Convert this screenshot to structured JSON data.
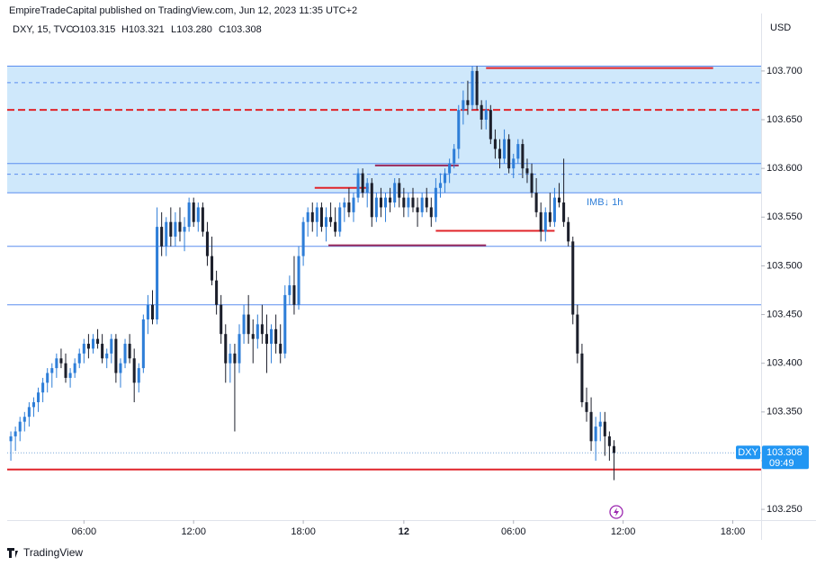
{
  "header": {
    "publisher": "EmpireTradeCapital published on TradingView.com, Jun 12, 2023 11:35 UTC+2",
    "brand": "TradingView"
  },
  "chart_data": {
    "type": "candlestick",
    "symbol": "DXY, 15, TVC",
    "ohlc_labels": [
      "O103.315",
      "H103.321",
      "L103.280",
      "C103.308"
    ],
    "currency": "USD",
    "annotation": "IMB↓ 1h",
    "last_price": {
      "symbol": "DXY",
      "label": "103.308",
      "countdown": "09:49",
      "color": "#2196f3"
    },
    "up_color": "#2e7ed8",
    "down_color": "#1c1f2b",
    "x": [
      0,
      1,
      2,
      3,
      4,
      5,
      6,
      7,
      8,
      9,
      10,
      11,
      12,
      13,
      14,
      15,
      16,
      17,
      18,
      19,
      20,
      21,
      22,
      23,
      24,
      25,
      26,
      27,
      28,
      29,
      30,
      31,
      32,
      33,
      34,
      35,
      36,
      37,
      38,
      39,
      40,
      41,
      42,
      43,
      44,
      45,
      46,
      47,
      48,
      49,
      50,
      51,
      52,
      53,
      54,
      55,
      56,
      57,
      58,
      59,
      60,
      61,
      62,
      63,
      64,
      65,
      66,
      67,
      68,
      69,
      70,
      71,
      72,
      73,
      74,
      75,
      76,
      77,
      78,
      79,
      80,
      81,
      82,
      83,
      84,
      85,
      86,
      87,
      88,
      89,
      90,
      91,
      92,
      93,
      94,
      95,
      96,
      97,
      98,
      99,
      100,
      101,
      102,
      103,
      104,
      105,
      106,
      107,
      108,
      109,
      110,
      111,
      112,
      113,
      114,
      115,
      116,
      117,
      118,
      119,
      120,
      121,
      122,
      123,
      124,
      125,
      126,
      127,
      128,
      129,
      130,
      131,
      132
    ],
    "open": [
      103.32,
      103.325,
      103.33,
      103.34,
      103.345,
      103.355,
      103.36,
      103.37,
      103.38,
      103.39,
      103.395,
      103.405,
      103.4,
      103.385,
      103.39,
      103.4,
      103.41,
      103.42,
      103.415,
      103.425,
      103.42,
      103.405,
      103.41,
      103.425,
      103.39,
      103.4,
      103.42,
      103.405,
      103.38,
      103.395,
      103.445,
      103.46,
      103.445,
      103.54,
      103.52,
      103.545,
      103.53,
      103.545,
      103.535,
      103.54,
      103.565,
      103.545,
      103.56,
      103.535,
      103.51,
      103.485,
      103.46,
      103.43,
      103.4,
      103.41,
      103.4,
      103.43,
      103.45,
      103.43,
      103.425,
      103.44,
      103.43,
      103.42,
      103.435,
      103.42,
      103.41,
      103.47,
      103.48,
      103.46,
      103.51,
      103.545,
      103.555,
      103.545,
      103.56,
      103.54,
      103.55,
      103.545,
      103.535,
      103.56,
      103.565,
      103.555,
      103.57,
      103.595,
      103.575,
      103.585,
      103.55,
      103.57,
      103.56,
      103.57,
      103.565,
      103.585,
      103.57,
      103.56,
      103.57,
      103.56,
      103.555,
      103.57,
      103.56,
      103.55,
      103.58,
      103.585,
      103.595,
      103.605,
      103.62,
      103.66,
      103.67,
      103.665,
      103.7,
      103.665,
      103.65,
      103.66,
      103.63,
      103.62,
      103.61,
      103.63,
      103.6,
      103.61,
      103.625,
      103.6,
      103.595,
      103.575,
      103.555,
      103.535,
      103.555,
      103.545,
      103.57,
      103.565,
      103.545,
      103.525,
      103.45,
      103.41,
      103.36,
      103.35,
      103.32,
      103.335,
      103.34,
      103.325,
      103.315
    ],
    "high": [
      103.33,
      103.335,
      103.345,
      103.35,
      103.36,
      103.365,
      103.375,
      103.385,
      103.395,
      103.4,
      103.41,
      103.415,
      103.41,
      103.395,
      103.405,
      103.415,
      103.425,
      103.43,
      103.43,
      103.435,
      103.43,
      103.415,
      103.43,
      103.43,
      103.405,
      103.425,
      103.43,
      103.415,
      103.4,
      103.45,
      103.47,
      103.475,
      103.56,
      103.555,
      103.55,
      103.56,
      103.555,
      103.56,
      103.55,
      103.57,
      103.57,
      103.565,
      103.565,
      103.545,
      103.53,
      103.495,
      103.47,
      103.44,
      103.42,
      103.42,
      103.44,
      103.46,
      103.47,
      103.445,
      103.45,
      103.46,
      103.45,
      103.44,
      103.45,
      103.44,
      103.48,
      103.49,
      103.51,
      103.52,
      103.55,
      103.56,
      103.565,
      103.565,
      103.565,
      103.56,
      103.565,
      103.56,
      103.565,
      103.57,
      103.58,
      103.575,
      103.6,
      103.6,
      103.59,
      103.59,
      103.575,
      103.58,
      103.575,
      103.58,
      103.59,
      103.59,
      103.58,
      103.575,
      103.58,
      103.57,
      103.575,
      103.58,
      103.57,
      103.59,
      103.595,
      103.6,
      103.61,
      103.625,
      103.665,
      103.68,
      103.69,
      103.705,
      103.705,
      103.67,
      103.67,
      103.665,
      103.64,
      103.63,
      103.64,
      103.635,
      103.615,
      103.63,
      103.63,
      103.61,
      103.605,
      103.59,
      103.565,
      103.56,
      103.575,
      103.58,
      103.585,
      103.61,
      103.55,
      103.53,
      103.46,
      103.42,
      103.375,
      103.365,
      103.345,
      103.35,
      103.35,
      103.33,
      103.321
    ],
    "low": [
      103.3,
      103.31,
      103.32,
      103.33,
      103.335,
      103.345,
      103.35,
      103.36,
      103.37,
      103.375,
      103.385,
      103.395,
      103.38,
      103.375,
      103.385,
      103.395,
      103.4,
      103.405,
      103.41,
      103.415,
      103.4,
      103.395,
      103.4,
      103.38,
      103.375,
      103.395,
      103.4,
      103.36,
      103.37,
      103.39,
      103.43,
      103.44,
      103.44,
      103.51,
      103.51,
      103.52,
      103.52,
      103.525,
      103.515,
      103.535,
      103.54,
      103.535,
      103.53,
      103.5,
      103.48,
      103.45,
      103.42,
      103.38,
      103.38,
      103.33,
      103.39,
      103.42,
      103.42,
      103.4,
      103.415,
      103.42,
      103.39,
      103.4,
      103.41,
      103.4,
      103.405,
      103.46,
      103.45,
      103.455,
      103.5,
      103.53,
      103.535,
      103.53,
      103.535,
      103.525,
      103.54,
      103.53,
      103.53,
      103.545,
      103.55,
      103.545,
      103.565,
      103.57,
      103.56,
      103.54,
      103.545,
      103.55,
      103.545,
      103.555,
      103.56,
      103.56,
      103.55,
      103.55,
      103.555,
      103.54,
      103.55,
      103.555,
      103.54,
      103.545,
      103.57,
      103.575,
      103.585,
      103.6,
      103.61,
      103.645,
      103.655,
      103.66,
      103.66,
      103.64,
      103.64,
      103.625,
      103.61,
      103.6,
      103.605,
      103.595,
      103.59,
      103.605,
      103.59,
      103.585,
      103.57,
      103.55,
      103.525,
      103.525,
      103.54,
      103.54,
      103.56,
      103.54,
      103.52,
      103.44,
      103.4,
      103.355,
      103.34,
      103.31,
      103.3,
      103.32,
      103.305,
      103.3,
      103.28
    ],
    "close": [
      103.325,
      103.33,
      103.34,
      103.345,
      103.355,
      103.36,
      103.37,
      103.38,
      103.39,
      103.395,
      103.405,
      103.4,
      103.385,
      103.39,
      103.4,
      103.41,
      103.42,
      103.415,
      103.425,
      103.42,
      103.405,
      103.41,
      103.425,
      103.39,
      103.4,
      103.42,
      103.405,
      103.38,
      103.395,
      103.445,
      103.46,
      103.445,
      103.54,
      103.52,
      103.545,
      103.53,
      103.545,
      103.535,
      103.54,
      103.565,
      103.545,
      103.56,
      103.535,
      103.51,
      103.485,
      103.46,
      103.43,
      103.4,
      103.41,
      103.4,
      103.43,
      103.45,
      103.43,
      103.425,
      103.44,
      103.43,
      103.42,
      103.435,
      103.42,
      103.41,
      103.47,
      103.48,
      103.46,
      103.51,
      103.545,
      103.555,
      103.545,
      103.56,
      103.54,
      103.55,
      103.545,
      103.535,
      103.56,
      103.565,
      103.555,
      103.57,
      103.595,
      103.575,
      103.585,
      103.55,
      103.57,
      103.56,
      103.57,
      103.565,
      103.585,
      103.57,
      103.56,
      103.57,
      103.56,
      103.555,
      103.57,
      103.56,
      103.55,
      103.58,
      103.585,
      103.595,
      103.605,
      103.62,
      103.66,
      103.67,
      103.665,
      103.7,
      103.665,
      103.65,
      103.66,
      103.63,
      103.62,
      103.61,
      103.63,
      103.6,
      103.61,
      103.625,
      103.6,
      103.595,
      103.575,
      103.555,
      103.535,
      103.555,
      103.545,
      103.57,
      103.565,
      103.545,
      103.525,
      103.45,
      103.41,
      103.36,
      103.35,
      103.32,
      103.335,
      103.34,
      103.325,
      103.315,
      103.308
    ],
    "xlim": [
      -0.8,
      164.2
    ],
    "xticks": [
      {
        "value": 16,
        "label": "06:00"
      },
      {
        "value": 40,
        "label": "12:00"
      },
      {
        "value": 64,
        "label": "18:00"
      },
      {
        "value": 86,
        "label": "12"
      },
      {
        "value": 110,
        "label": "06:00"
      },
      {
        "value": 134,
        "label": "12:00"
      },
      {
        "value": 158,
        "label": "18:00"
      }
    ],
    "ylim": [
      103.239,
      103.759
    ],
    "yticks": [
      {
        "value": 103.25,
        "label": "103.250"
      },
      {
        "value": 103.3,
        "label": "103.300"
      },
      {
        "value": 103.35,
        "label": "103.350"
      },
      {
        "value": 103.4,
        "label": "103.400"
      },
      {
        "value": 103.45,
        "label": "103.450"
      },
      {
        "value": 103.5,
        "label": "103.500"
      },
      {
        "value": 103.55,
        "label": "103.550"
      },
      {
        "value": 103.6,
        "label": "103.600"
      },
      {
        "value": 103.65,
        "label": "103.650"
      },
      {
        "value": 103.7,
        "label": "103.700"
      }
    ],
    "zone": {
      "from": 103.575,
      "to": 103.705,
      "color": "#cfe8fb"
    },
    "levels": [
      {
        "value": 103.705,
        "color": "#5b8def",
        "dash": false
      },
      {
        "value": 103.688,
        "color": "#5b8def",
        "dash": true
      },
      {
        "value": 103.66,
        "color": "#e0242a",
        "dash": true
      },
      {
        "value": 103.605,
        "color": "#5b8def",
        "dash": false
      },
      {
        "value": 103.594,
        "color": "#5b8def",
        "dash": true
      },
      {
        "value": 103.575,
        "color": "#5b8def",
        "dash": false
      },
      {
        "value": 103.52,
        "color": "#5b8def",
        "dash": false
      },
      {
        "value": 103.46,
        "color": "#5b8def",
        "dash": false
      },
      {
        "value": 103.291,
        "color": "#e0242a",
        "dash": false
      }
    ],
    "segments": [
      {
        "x": [
          104,
          153.7
        ],
        "value": 103.703,
        "color": "#e0242a"
      },
      {
        "x": [
          66.5,
          78.3
        ],
        "value": 103.58,
        "color": "#e0242a"
      },
      {
        "x": [
          79.7,
          98
        ],
        "value": 103.603,
        "color": "#9c2a5a"
      },
      {
        "x": [
          69.5,
          104
        ],
        "value": 103.521,
        "color": "#9c2a5a"
      },
      {
        "x": [
          93,
          119
        ],
        "value": 103.536,
        "color": "#e0242a"
      }
    ]
  }
}
